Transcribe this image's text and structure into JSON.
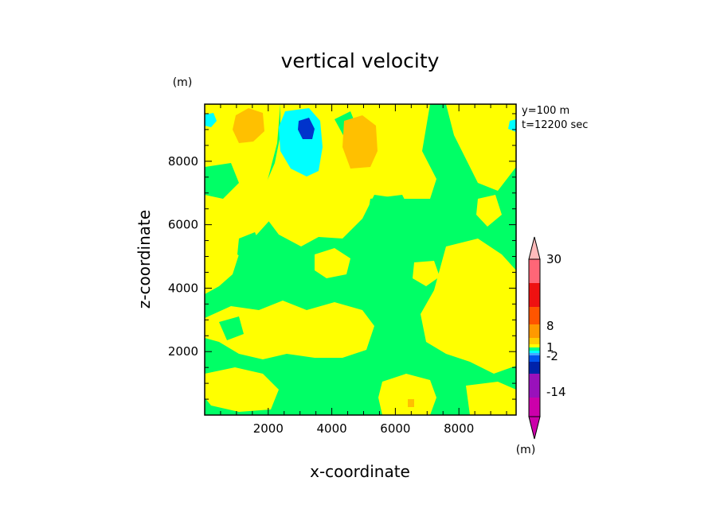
{
  "chart_data": {
    "type": "heatmap",
    "title": "vertical velocity",
    "xlabel": "x-coordinate",
    "ylabel": "z-coordinate",
    "y_unit": "(m)",
    "colorbar_unit": "(m)",
    "annotations": [
      "y=100 m",
      "t=12200 sec"
    ],
    "xlim": [
      0,
      9800
    ],
    "ylim": [
      0,
      9800
    ],
    "xticks": [
      2000,
      4000,
      6000,
      8000
    ],
    "yticks": [
      2000,
      4000,
      6000,
      8000
    ],
    "colorbar_labels": [
      {
        "value": 30,
        "label": "30"
      },
      {
        "value": 8,
        "label": "8"
      },
      {
        "value": 1,
        "label": "1"
      },
      {
        "value": -2,
        "label": "-2"
      },
      {
        "value": -14,
        "label": "-14"
      }
    ],
    "colorbar_colors": [
      "#cc00aa",
      "#9911bb",
      "#0022aa",
      "#0055ee",
      "#44aaff",
      "#00ffff",
      "#00ff88",
      "#ffff00",
      "#ffcc00",
      "#ff9900",
      "#ff5500",
      "#ee1111",
      "#ff6677",
      "#ffbbbb"
    ],
    "palette": {
      "background": "#00ff66",
      "positive_small": "#ffff00",
      "positive_medium": "#ffc000",
      "negative_small": "#00ffff",
      "negative_medium": "#0033cc"
    }
  }
}
